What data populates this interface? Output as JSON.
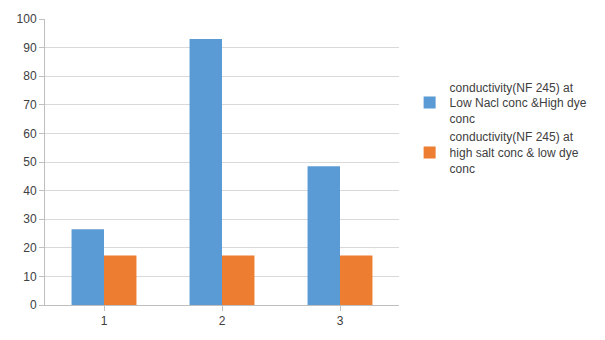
{
  "chart_data": {
    "type": "bar",
    "categories": [
      "1",
      "2",
      "3"
    ],
    "series": [
      {
        "name": "conductivity(NF 245) at Low Nacl conc &High dye conc",
        "color": "#5b9bd5",
        "values": [
          26.5,
          93,
          48.5
        ]
      },
      {
        "name": "conductivity(NF 245) at high salt conc & low dye conc",
        "color": "#ed7d31",
        "values": [
          17.3,
          17.3,
          17.3
        ]
      }
    ],
    "ylim": [
      0,
      100
    ],
    "yticks": [
      0,
      10,
      20,
      30,
      40,
      50,
      60,
      70,
      80,
      90,
      100
    ],
    "grid": true,
    "legend": "right"
  }
}
